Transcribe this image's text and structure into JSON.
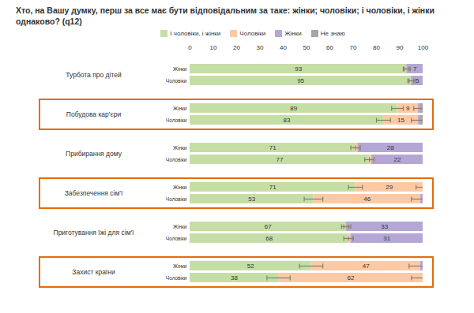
{
  "chart_data": {
    "type": "bar",
    "title": "Хто, на Вашу думку, перш за все має бути відповідальним за таке: жінки; чоловіки; і чоловіки, і жінки однаково? (q12)",
    "orientation": "horizontal",
    "stacked": true,
    "data_labels": true,
    "grid": false,
    "legend": "top",
    "categories": [
      "Турбота про дітей",
      "Побудова кар'єри",
      "Прибирання дому",
      "Забезпечення сім'ї",
      "Приготування їжі для сім'ї",
      "Захист країни"
    ],
    "subgroups": [
      "Жінки",
      "Чоловіки"
    ],
    "xlim": [
      0,
      100
    ],
    "xticks": [
      0,
      10,
      20,
      30,
      40,
      50,
      60,
      70,
      80,
      90,
      100
    ],
    "series": [
      {
        "name": "І чоловіки, і жінки",
        "color": "#c5dea5",
        "values": [
          [
            93,
            95
          ],
          [
            89,
            83
          ],
          [
            71,
            77
          ],
          [
            71,
            53
          ],
          [
            67,
            68
          ],
          [
            52,
            38
          ]
        ],
        "errors": [
          [
            1.5,
            1.5
          ],
          [
            2.5,
            3
          ],
          [
            2,
            2
          ],
          [
            3,
            4
          ],
          [
            2,
            2
          ],
          [
            5,
            5
          ]
        ]
      },
      {
        "name": "Чоловіки",
        "color": "#fcc9a5",
        "values": [
          [
            0,
            0
          ],
          [
            9,
            15
          ],
          [
            1,
            1
          ],
          [
            29,
            46
          ],
          [
            0,
            1
          ],
          [
            47,
            62
          ]
        ],
        "errors": [
          [
            1,
            1
          ],
          [
            2,
            3
          ],
          [
            1,
            1
          ],
          [
            3,
            4
          ],
          [
            1,
            1
          ],
          [
            5,
            5
          ]
        ]
      },
      {
        "name": "Жінки",
        "color": "#b4a7d6",
        "values": [
          [
            7,
            5
          ],
          [
            1,
            1
          ],
          [
            28,
            22
          ],
          [
            0,
            1
          ],
          [
            33,
            31
          ],
          [
            1,
            0
          ]
        ]
      },
      {
        "name": "Не знаю",
        "color": "#a6a6a6",
        "values": [
          [
            0,
            0
          ],
          [
            1,
            1
          ],
          [
            0,
            0
          ],
          [
            0,
            0
          ],
          [
            0,
            0
          ],
          [
            0,
            0
          ]
        ]
      }
    ]
  }
}
